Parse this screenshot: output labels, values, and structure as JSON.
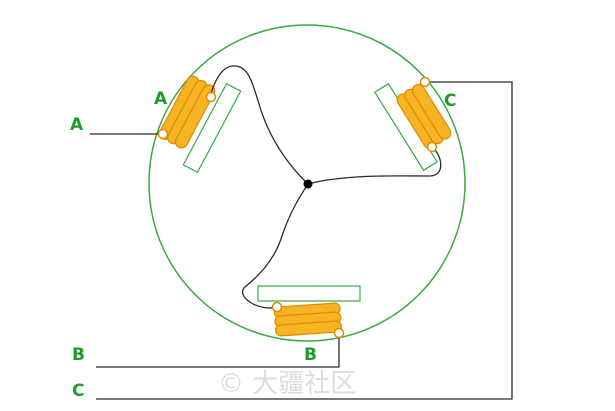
{
  "labels": {
    "terminal_a": "A",
    "terminal_b": "B",
    "terminal_c": "C",
    "coil_a": "A",
    "coil_b": "B",
    "coil_c": "C"
  },
  "watermark": "© 大疆社区",
  "colors": {
    "background": "#ffffff",
    "stator_circle": "#39a845",
    "pole_core_outline": "#39a845",
    "winding_fill": "#f6b324",
    "winding_stroke": "#e08a00",
    "wire": "#2b2b2b",
    "label": "#1e9b2c",
    "neutral_point": "#000000",
    "watermark": "#dddddd"
  }
}
